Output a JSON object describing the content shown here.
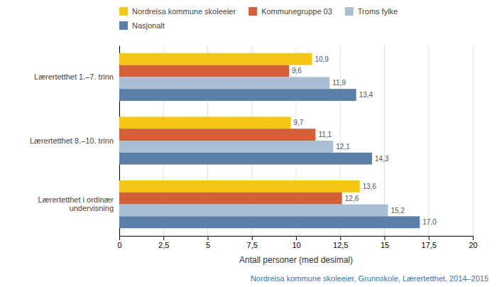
{
  "chart_data": {
    "type": "bar",
    "orientation": "horizontal",
    "categories": [
      "Lærertetthet i ordinær\nundervisning",
      "Lærertetthet 8.–10. trinn",
      "Lærertetthet 1.–7. trinn"
    ],
    "series": [
      {
        "name": "Nordreisa kommune skoleeier",
        "color": "#F5C518",
        "values": [
          13.6,
          9.7,
          10.9
        ],
        "value_labels": [
          "13,6",
          "9,7",
          "10,9"
        ]
      },
      {
        "name": "Kommunegruppe 03",
        "color": "#D4603A",
        "values": [
          12.6,
          11.1,
          9.6
        ],
        "value_labels": [
          "12,6",
          "11,1",
          "9,6"
        ]
      },
      {
        "name": "Troms fylke",
        "color": "#AABFD4",
        "values": [
          15.2,
          12.1,
          11.9
        ],
        "value_labels": [
          "15,2",
          "12,1",
          "11,9"
        ]
      },
      {
        "name": "Nasjonalt",
        "color": "#5B7FA6",
        "values": [
          17.0,
          14.3,
          13.4
        ],
        "value_labels": [
          "17,0",
          "14,3",
          "13,4"
        ]
      }
    ],
    "xlabel": "Antall personer (med desimal)",
    "xlim": [
      0,
      20
    ],
    "xticks": [
      0,
      {
        "value": 2.5,
        "label": "2,5"
      },
      5,
      {
        "value": 7.5,
        "label": "7,5"
      },
      10,
      {
        "value": 12.5,
        "label": "12,5"
      },
      15,
      {
        "value": 17.5,
        "label": "17,5"
      },
      20
    ],
    "footnote": "Nordreisa kommune skoleeier, Grunnskole, Lærertetthet, 2014–2015",
    "grid": true,
    "legend": "upper left",
    "data_labels": true
  }
}
